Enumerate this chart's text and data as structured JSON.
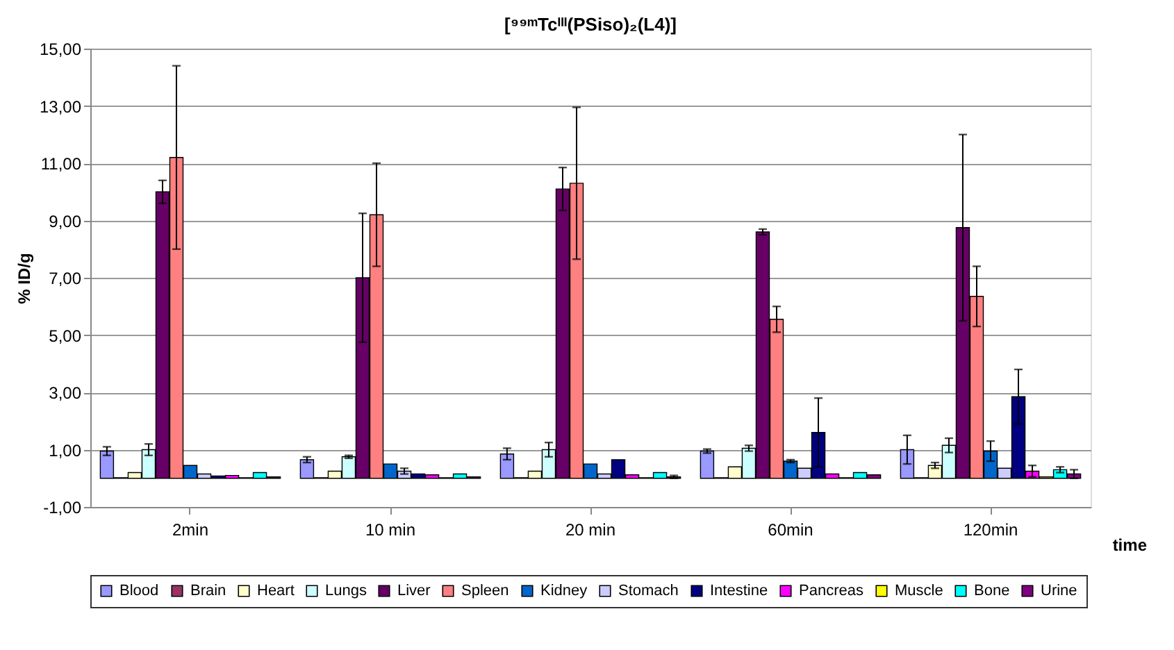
{
  "chart_data": {
    "type": "bar",
    "title": "[⁹⁹ᵐTcᴵᴵᴵ(PSiso)₂(L4)]",
    "xlabel": "time",
    "ylabel": "% ID/g",
    "categories": [
      "2min",
      "10 min",
      "20 min",
      "60min",
      "120min"
    ],
    "ylim": [
      -1,
      15
    ],
    "yticks": [
      {
        "value": -1,
        "label": "-1,00"
      },
      {
        "value": 1,
        "label": "1,00"
      },
      {
        "value": 3,
        "label": "3,00"
      },
      {
        "value": 5,
        "label": "5,00"
      },
      {
        "value": 7,
        "label": "7,00"
      },
      {
        "value": 9,
        "label": "9,00"
      },
      {
        "value": 11,
        "label": "11,00"
      },
      {
        "value": 13,
        "label": "13,00"
      },
      {
        "value": 15,
        "label": "15,00"
      }
    ],
    "grid": "y",
    "legend": "bottom",
    "series": [
      {
        "name": "Blood",
        "color": "#9999ff",
        "values": [
          0.95,
          0.65,
          0.85,
          0.95,
          1.0
        ],
        "errors": [
          0.15,
          0.1,
          0.2,
          0.07,
          0.5
        ]
      },
      {
        "name": "Brain",
        "color": "#993366",
        "values": [
          0.02,
          0.02,
          0.02,
          0.02,
          0.02
        ],
        "errors": [
          null,
          null,
          null,
          null,
          null
        ]
      },
      {
        "name": "Heart",
        "color": "#ffffcc",
        "values": [
          0.2,
          0.25,
          0.25,
          0.4,
          0.45
        ],
        "errors": [
          null,
          null,
          null,
          null,
          0.1
        ]
      },
      {
        "name": "Lungs",
        "color": "#ccffff",
        "values": [
          1.0,
          0.75,
          1.0,
          1.05,
          1.15
        ],
        "errors": [
          0.2,
          0.05,
          0.25,
          0.1,
          0.25
        ]
      },
      {
        "name": "Liver",
        "color": "#660066",
        "values": [
          10.0,
          7.0,
          10.1,
          8.6,
          8.75
        ],
        "errors": [
          0.4,
          2.25,
          0.75,
          0.1,
          3.25
        ]
      },
      {
        "name": "Spleen",
        "color": "#ff8080",
        "values": [
          11.2,
          9.2,
          10.3,
          5.55,
          6.35
        ],
        "errors": [
          3.2,
          1.8,
          2.65,
          0.45,
          1.05
        ]
      },
      {
        "name": "Kidney",
        "color": "#0066cc",
        "values": [
          0.45,
          0.5,
          0.5,
          0.6,
          0.95
        ],
        "errors": [
          null,
          null,
          null,
          0.05,
          0.35
        ]
      },
      {
        "name": "Stomach",
        "color": "#ccccff",
        "values": [
          0.15,
          0.25,
          0.15,
          0.35,
          0.35
        ],
        "errors": [
          null,
          0.1,
          null,
          null,
          null
        ]
      },
      {
        "name": "Intestine",
        "color": "#000080",
        "values": [
          0.08,
          0.15,
          0.65,
          1.6,
          2.85
        ],
        "errors": [
          null,
          null,
          null,
          1.2,
          0.95
        ]
      },
      {
        "name": "Pancreas",
        "color": "#ff00ff",
        "values": [
          0.1,
          0.12,
          0.12,
          0.15,
          0.25
        ],
        "errors": [
          null,
          null,
          null,
          null,
          0.2
        ]
      },
      {
        "name": "Muscle",
        "color": "#ffff00",
        "values": [
          0.02,
          0.02,
          0.02,
          0.02,
          0.05
        ],
        "errors": [
          null,
          null,
          null,
          null,
          null
        ]
      },
      {
        "name": "Bone",
        "color": "#00ffff",
        "values": [
          0.2,
          0.15,
          0.2,
          0.2,
          0.3
        ],
        "errors": [
          null,
          null,
          null,
          null,
          0.1
        ]
      },
      {
        "name": "Urine",
        "color": "#800080",
        "values": [
          0.05,
          0.05,
          0.05,
          0.12,
          0.15
        ],
        "errors": [
          null,
          null,
          0.05,
          null,
          0.15
        ]
      }
    ]
  }
}
